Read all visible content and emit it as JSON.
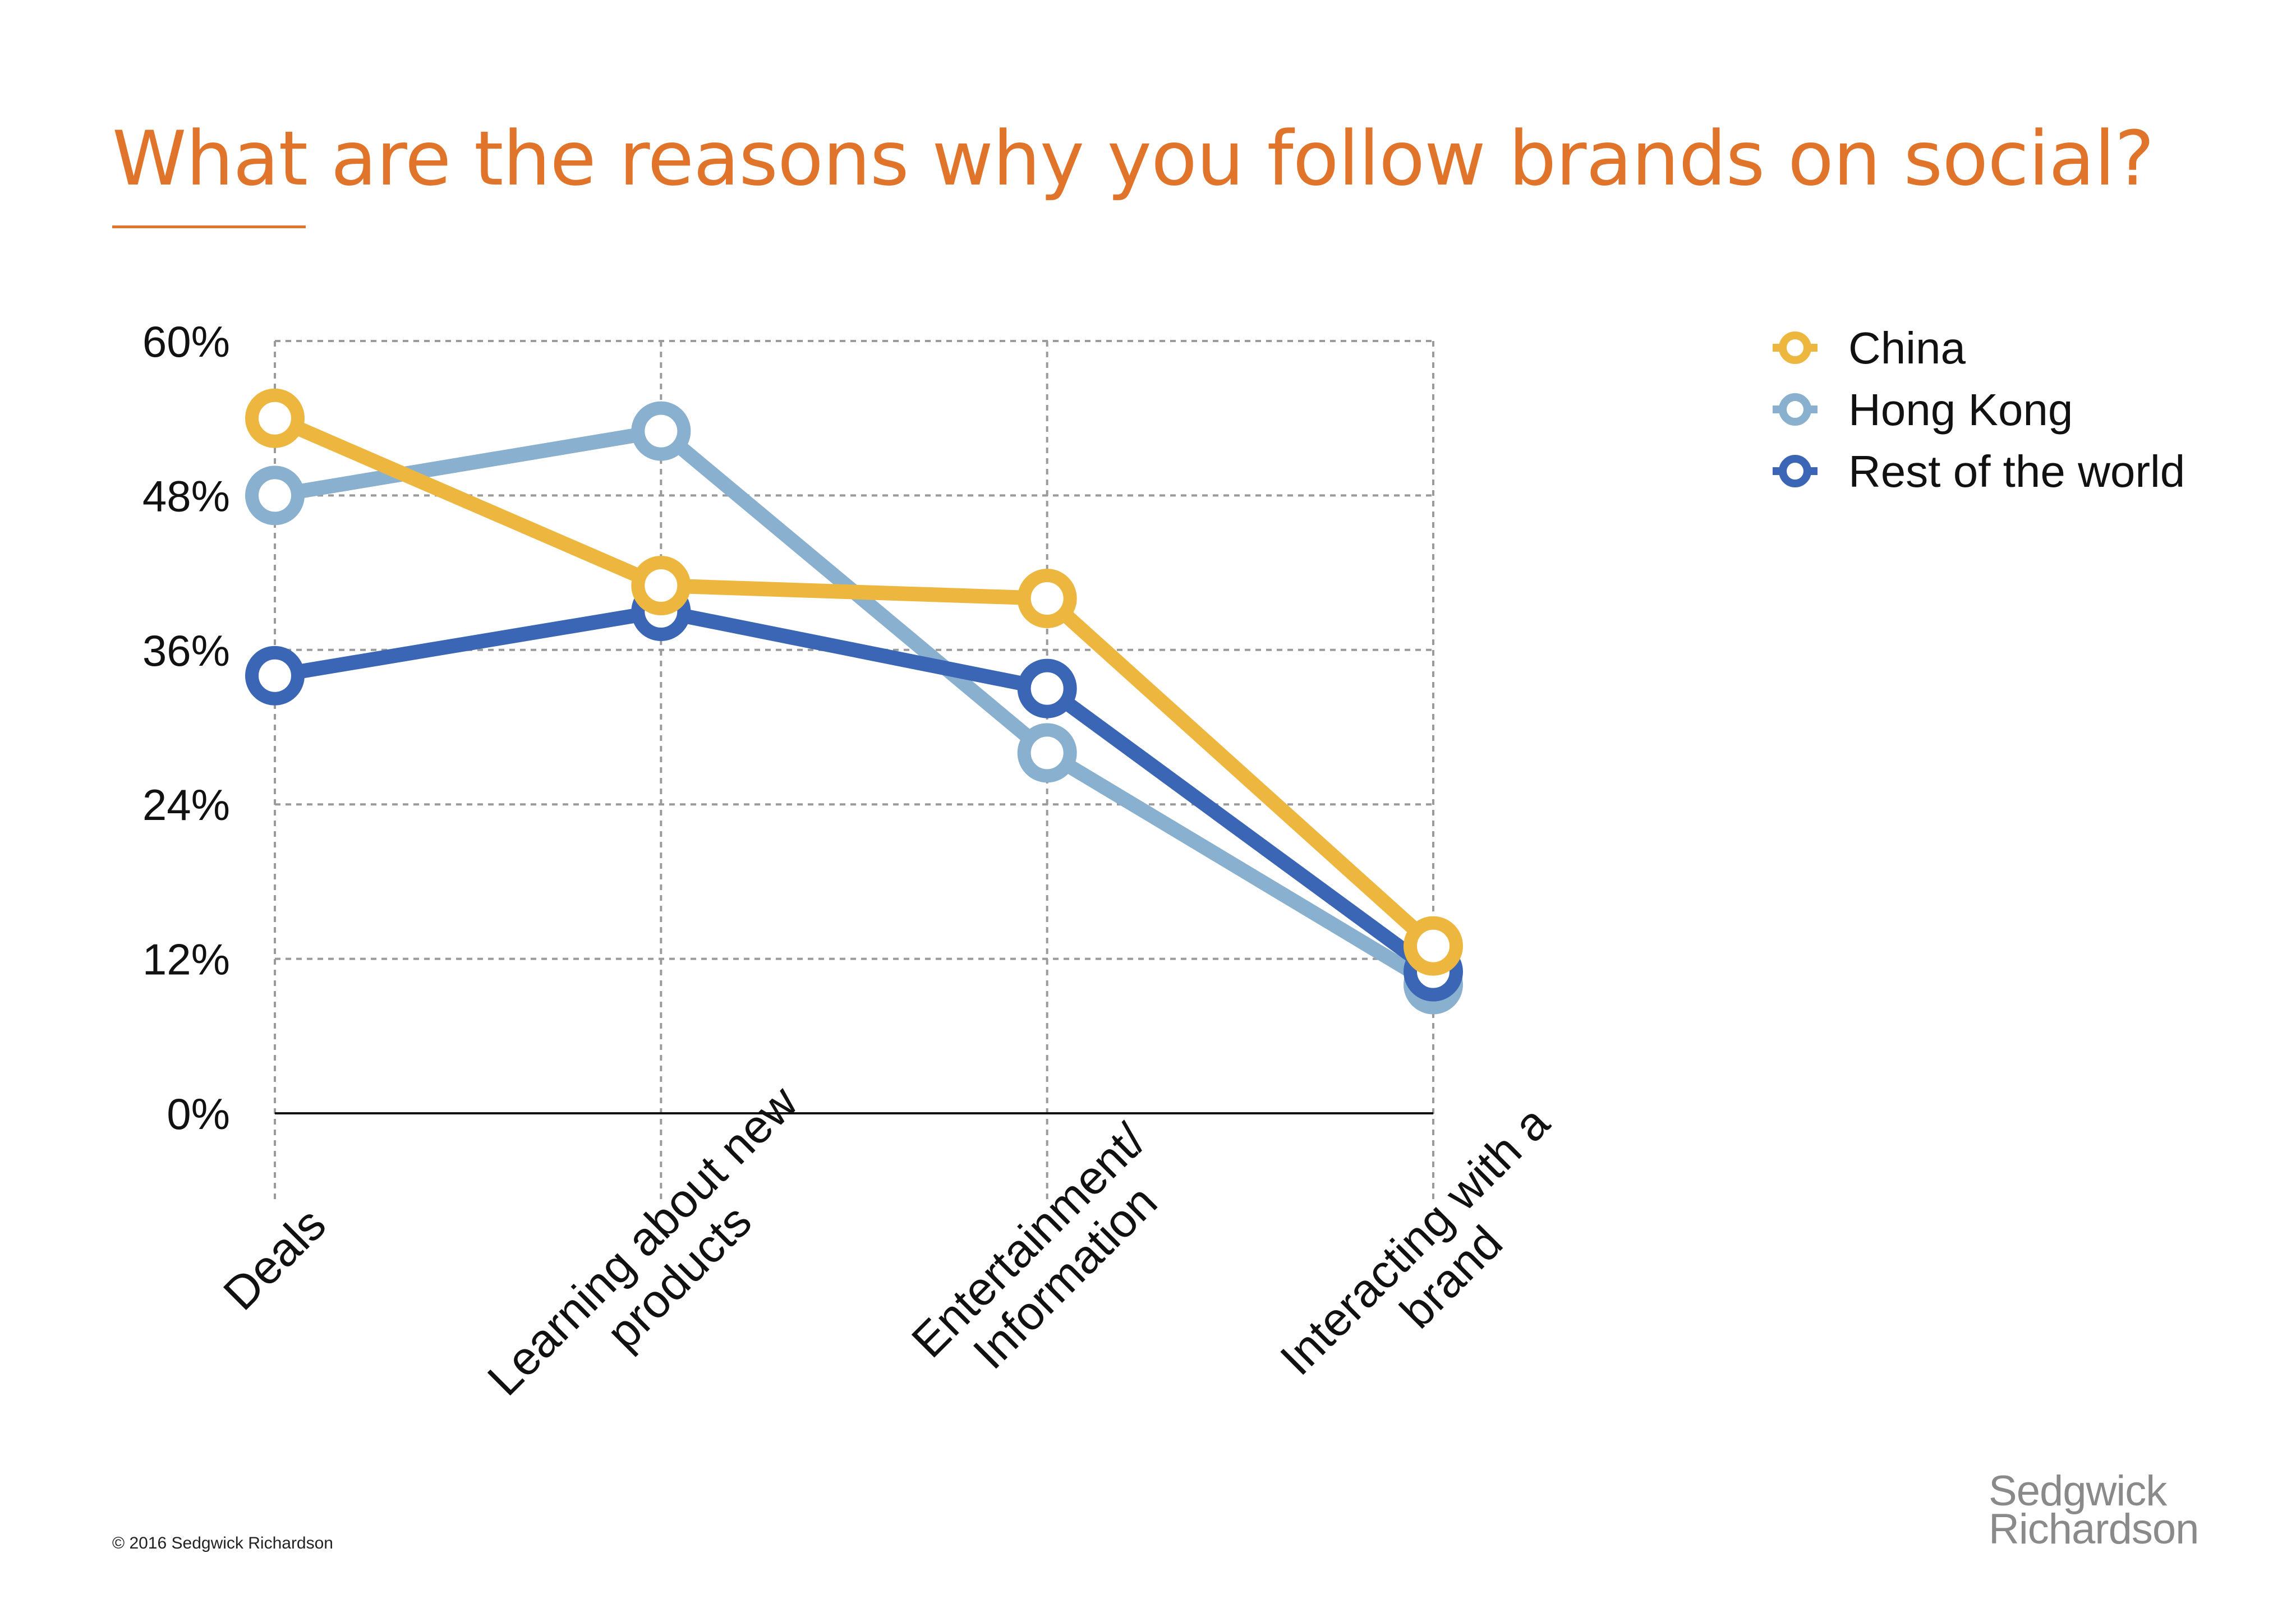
{
  "colors": {
    "title": "#E0742A",
    "china": "#EDB73F",
    "hong_kong": "#8AB0CF",
    "rest_of_world": "#3A66B5",
    "grid": "#9b9b9b",
    "axis": "#111111"
  },
  "chart_data": {
    "type": "line",
    "title": "What are the reasons why you follow brands on social?",
    "xlabel": "",
    "ylabel": "",
    "categories": [
      [
        "Deals"
      ],
      [
        "Learning about new",
        "products"
      ],
      [
        "Entertainment/",
        "Information"
      ],
      [
        "Interacting with a",
        "brand"
      ]
    ],
    "y_ticks": [
      0,
      12,
      24,
      36,
      48,
      60
    ],
    "y_tick_labels": [
      "0%",
      "12%",
      "24%",
      "36%",
      "48%",
      "60%"
    ],
    "ylim": [
      0,
      60
    ],
    "grid": true,
    "legend_position": "top-right",
    "series": [
      {
        "name": "Hong Kong",
        "color_key": "hong_kong",
        "values": [
          48,
          53,
          28,
          10
        ]
      },
      {
        "name": "Rest of the world",
        "color_key": "rest_of_world",
        "values": [
          34,
          39,
          33,
          11
        ]
      },
      {
        "name": "China",
        "color_key": "china",
        "values": [
          54,
          41,
          40,
          13
        ]
      }
    ],
    "legend_order": [
      "China",
      "Hong Kong",
      "Rest of the world"
    ]
  },
  "footer": {
    "copyright": "© 2016 Sedgwick Richardson",
    "logo_line1": "Sedgwick",
    "logo_line2": "Richardson"
  }
}
